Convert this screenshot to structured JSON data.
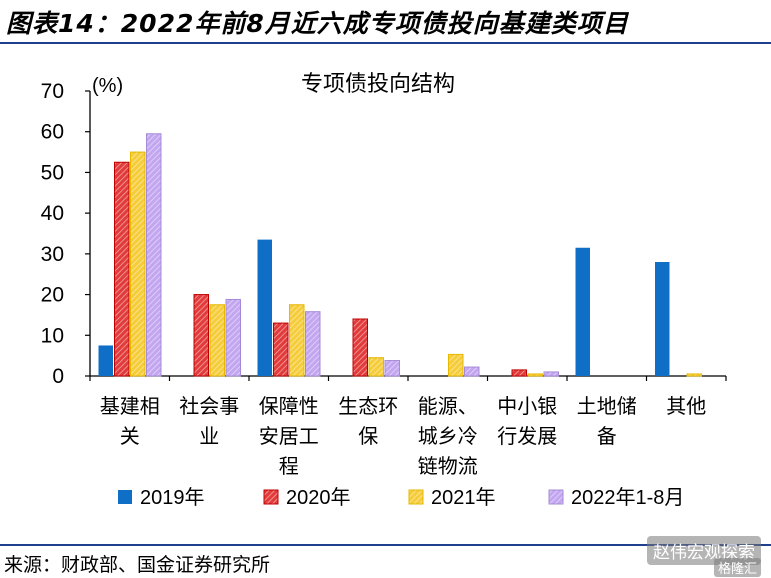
{
  "figure_title": "图表14：2022年前8月近六成专项债投向基建类项目",
  "source": "来源：财政部、国金证券研究所",
  "watermark": "赵伟宏观探索",
  "watermark_sub": "格隆汇",
  "colors": {
    "rule": "#1f3f8f",
    "series": [
      "#0f6fc6",
      "#e23b3b",
      "#f5cc3a",
      "#c3a6f0"
    ],
    "series_hatch": [
      "none",
      "#f2a5a5",
      "#fbe8a0",
      "#e3d6fb"
    ],
    "series_stroke": [
      "#0f6fc6",
      "#c00000",
      "#e6b800",
      "#a58bd6"
    ]
  },
  "chart_data": {
    "type": "bar",
    "title": "专项债投向结构",
    "ylabel": "(%)",
    "ylim": [
      0,
      70
    ],
    "yticks": [
      0,
      10,
      20,
      30,
      40,
      50,
      60,
      70
    ],
    "categories": [
      [
        "基建相",
        "关"
      ],
      [
        "社会事",
        "业"
      ],
      [
        "保障性",
        "安居工",
        "程"
      ],
      [
        "生态环",
        "保"
      ],
      [
        "能源、",
        "城乡冷",
        "链物流"
      ],
      [
        "中小银",
        "行发展"
      ],
      [
        "土地储",
        "备"
      ],
      [
        "其他"
      ]
    ],
    "series": [
      {
        "name": "2019年",
        "values": [
          7.5,
          0,
          33.5,
          0,
          0,
          0,
          31.5,
          28
        ]
      },
      {
        "name": "2020年",
        "values": [
          52.5,
          20,
          13,
          14,
          0,
          1.5,
          0,
          0
        ]
      },
      {
        "name": "2021年",
        "values": [
          55,
          17.5,
          17.5,
          4.5,
          5.3,
          0.5,
          0,
          0.5
        ]
      },
      {
        "name": "2022年1-8月",
        "values": [
          59.5,
          18.8,
          15.8,
          3.8,
          2.2,
          1,
          0,
          0
        ]
      }
    ],
    "grid": false,
    "legend_position": "bottom"
  }
}
